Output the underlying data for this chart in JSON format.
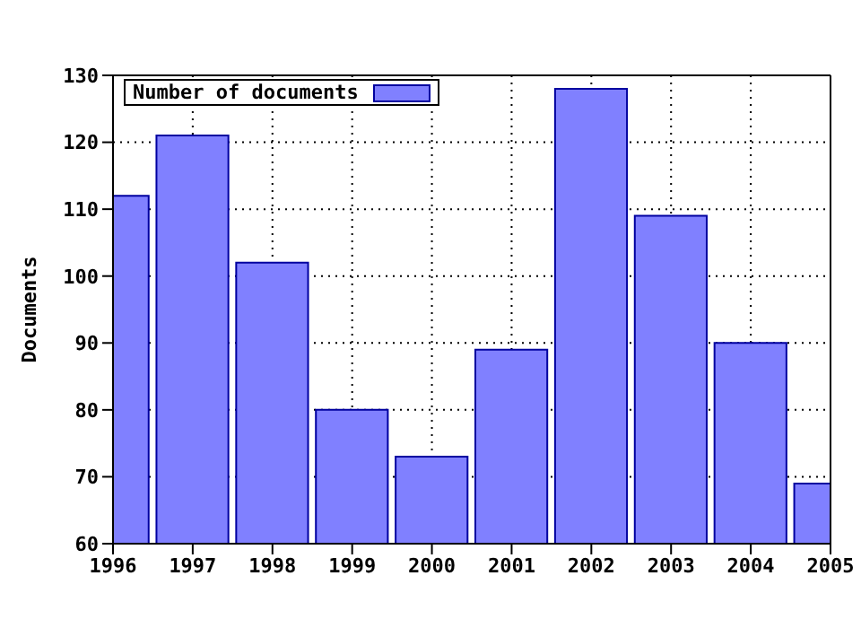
{
  "chart_data": {
    "type": "bar",
    "ylabel": "Documents",
    "x": [
      1996,
      1997,
      1998,
      1999,
      2000,
      2001,
      2002,
      2003,
      2004,
      2005
    ],
    "series": [
      {
        "name": "Number of documents",
        "color": "#8080ff",
        "values": [
          112,
          121,
          102,
          80,
          73,
          89,
          128,
          109,
          90,
          69
        ]
      }
    ],
    "xlim": [
      1996,
      2005
    ],
    "xticks": [
      1996,
      1997,
      1998,
      1999,
      2000,
      2001,
      2002,
      2003,
      2004,
      2005
    ],
    "ylim": [
      60,
      130
    ],
    "yticks": [
      60,
      70,
      80,
      90,
      100,
      110,
      120,
      130
    ],
    "grid": true,
    "legend": "top left"
  }
}
